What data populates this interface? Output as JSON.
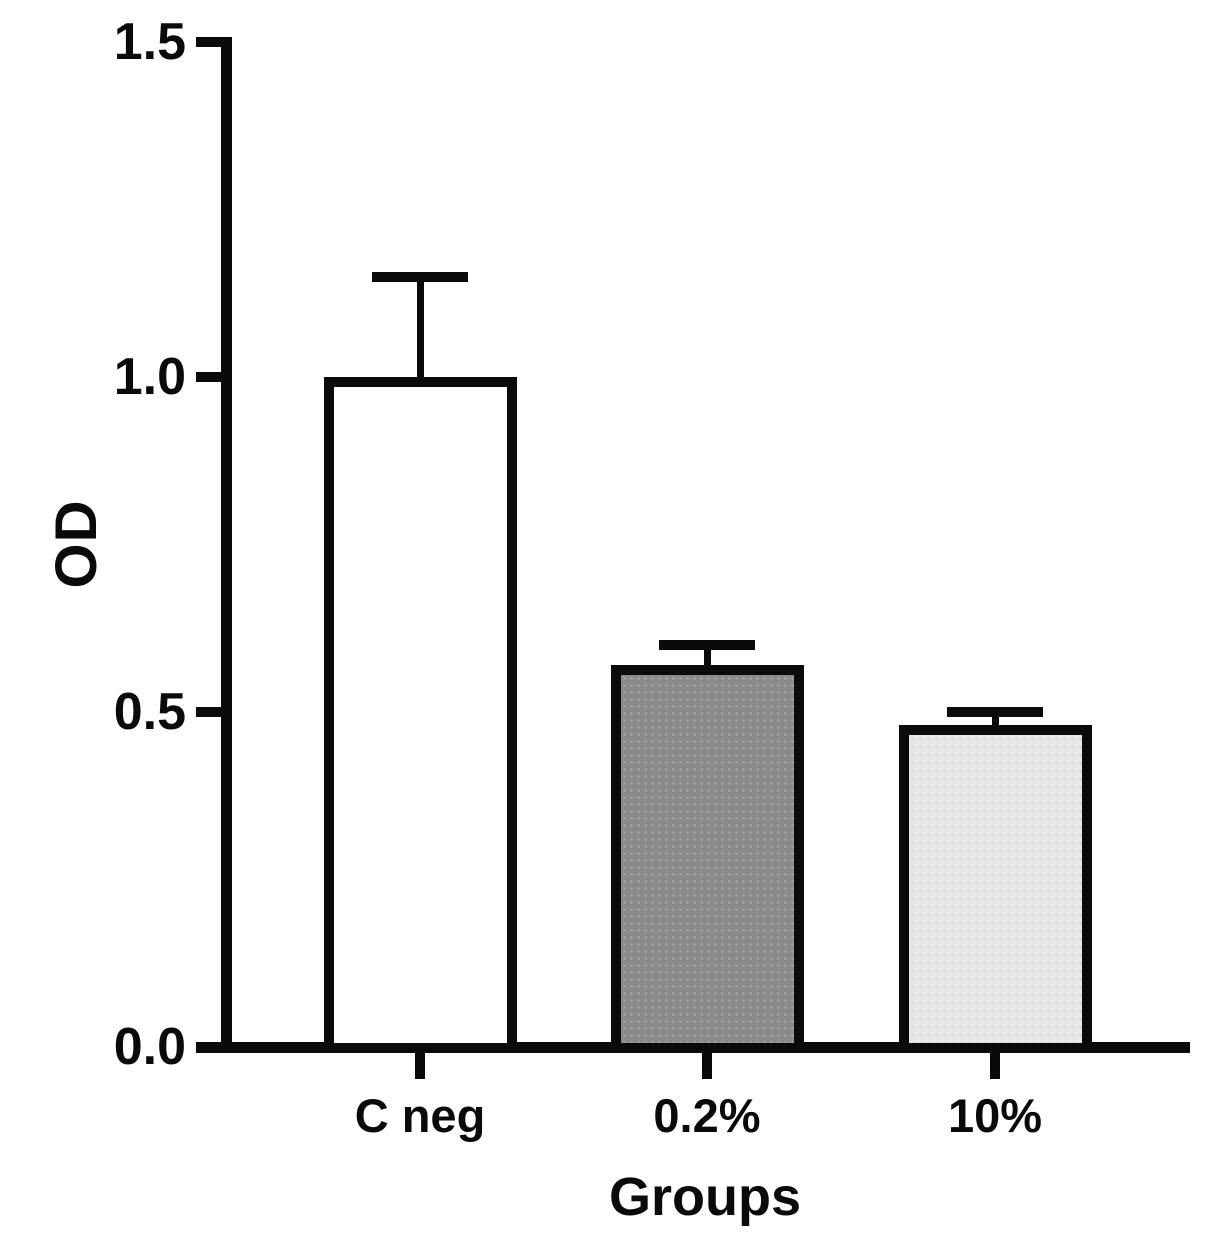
{
  "figure": {
    "background": "#ffffff"
  },
  "chart_data": {
    "type": "bar",
    "title": "",
    "xlabel": "Groups",
    "ylabel": "OD",
    "categories": [
      "C neg",
      "0.2%",
      "10%"
    ],
    "values": [
      1.0,
      0.57,
      0.48
    ],
    "errors_plus": [
      0.15,
      0.03,
      0.02
    ],
    "error_style": "upper whisker with cap",
    "bar_fills": [
      "#ffffff",
      "#8a8a8a",
      "#e7e7e7"
    ],
    "bar_textures": [
      "none",
      "dots",
      "speckle"
    ],
    "bar_border_color": "#0a0a0a",
    "axis_color": "#0a0a0a",
    "ylim": [
      0,
      1.5
    ],
    "y_ticks": [
      {
        "label": "0.0",
        "value": 0.0
      },
      {
        "label": "0.5",
        "value": 0.5
      },
      {
        "label": "1.0",
        "value": 1.0
      },
      {
        "label": "1.5",
        "value": 1.5
      }
    ],
    "grid": false,
    "legend": null
  }
}
